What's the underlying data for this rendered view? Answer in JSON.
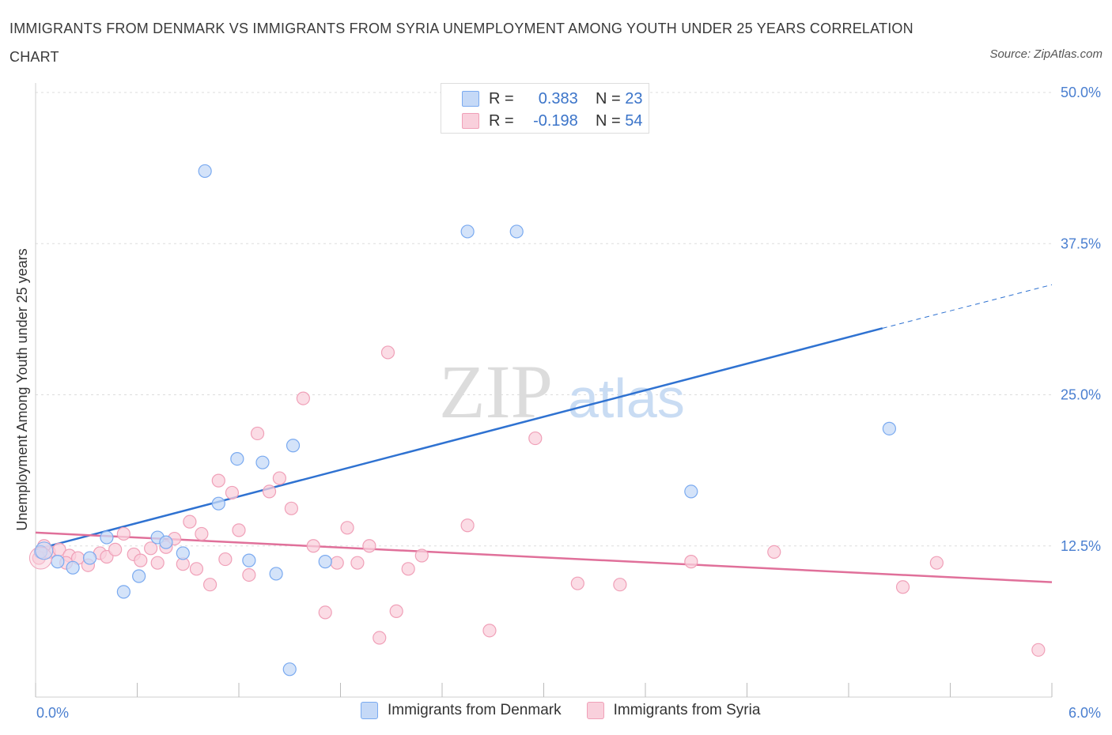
{
  "title": "IMMIGRANTS FROM DENMARK VS IMMIGRANTS FROM SYRIA UNEMPLOYMENT AMONG YOUTH UNDER 25 YEARS CORRELATION CHART",
  "source": "Source: ZipAtlas.com",
  "watermark": {
    "zip": "ZIP",
    "atlas": "atlas"
  },
  "legend": {
    "r_label": "R =",
    "n_label": "N =",
    "rows": [
      {
        "r": "0.383",
        "n": "23"
      },
      {
        "r": "-0.198",
        "n": "54"
      }
    ]
  },
  "chart_data": {
    "type": "scatter",
    "xlabel": "",
    "ylabel": "Unemployment Among Youth under 25 years",
    "xlim": [
      0,
      6
    ],
    "ylim": [
      0,
      50
    ],
    "x_tick_labels": [
      "0.0%",
      "6.0%"
    ],
    "y_tick_labels": [
      "12.5%",
      "25.0%",
      "37.5%",
      "50.0%"
    ],
    "y_ticks": [
      12.5,
      25,
      37.5,
      50
    ],
    "grid": true,
    "legend_position": "bottom",
    "series": [
      {
        "name": "Immigrants from Denmark",
        "color": "#7aaaf0",
        "fill": "#c5d9f7",
        "line_color": "#2f72d1",
        "trend": {
          "x0": 0.0,
          "y0": 12.2,
          "x1": 5.0,
          "y1": 30.5,
          "dash_to_x": 6.0,
          "dash_y1": 34.1
        },
        "points": [
          [
            0.03,
            12.0
          ],
          [
            0.13,
            11.2
          ],
          [
            0.22,
            10.7
          ],
          [
            0.32,
            11.5
          ],
          [
            0.42,
            13.2
          ],
          [
            0.52,
            8.7
          ],
          [
            0.61,
            10.0
          ],
          [
            0.72,
            13.2
          ],
          [
            0.77,
            12.8
          ],
          [
            0.87,
            11.9
          ],
          [
            1.0,
            43.5
          ],
          [
            1.08,
            16.0
          ],
          [
            1.19,
            19.7
          ],
          [
            1.34,
            19.4
          ],
          [
            1.26,
            11.3
          ],
          [
            1.42,
            10.2
          ],
          [
            1.52,
            20.8
          ],
          [
            1.71,
            11.2
          ],
          [
            2.55,
            38.5
          ],
          [
            2.84,
            38.5
          ],
          [
            3.87,
            17.0
          ],
          [
            5.04,
            22.2
          ],
          [
            1.5,
            2.3
          ]
        ]
      },
      {
        "name": "Immigrants from Syria",
        "color": "#f0a0b8",
        "fill": "#f9d0dc",
        "line_color": "#e0709a",
        "trend": {
          "x0": 0.0,
          "y0": 13.6,
          "x1": 6.0,
          "y1": 9.5
        },
        "points": [
          [
            0.02,
            11.5
          ],
          [
            0.08,
            12.0
          ],
          [
            0.14,
            12.2
          ],
          [
            0.2,
            11.7
          ],
          [
            0.25,
            11.5
          ],
          [
            0.31,
            10.9
          ],
          [
            0.38,
            11.9
          ],
          [
            0.42,
            11.6
          ],
          [
            0.47,
            12.2
          ],
          [
            0.52,
            13.5
          ],
          [
            0.58,
            11.8
          ],
          [
            0.62,
            11.3
          ],
          [
            0.68,
            12.3
          ],
          [
            0.72,
            11.1
          ],
          [
            0.77,
            12.4
          ],
          [
            0.82,
            13.1
          ],
          [
            0.87,
            11.0
          ],
          [
            0.91,
            14.5
          ],
          [
            0.95,
            10.6
          ],
          [
            0.98,
            13.5
          ],
          [
            1.03,
            9.3
          ],
          [
            1.08,
            17.9
          ],
          [
            1.12,
            11.4
          ],
          [
            1.16,
            16.9
          ],
          [
            1.2,
            13.8
          ],
          [
            1.26,
            10.1
          ],
          [
            1.31,
            21.8
          ],
          [
            1.38,
            17.0
          ],
          [
            1.44,
            18.1
          ],
          [
            1.51,
            15.6
          ],
          [
            1.58,
            24.7
          ],
          [
            1.64,
            12.5
          ],
          [
            1.71,
            7.0
          ],
          [
            1.78,
            11.1
          ],
          [
            1.84,
            14.0
          ],
          [
            1.9,
            11.1
          ],
          [
            1.97,
            12.5
          ],
          [
            2.03,
            4.9
          ],
          [
            2.08,
            28.5
          ],
          [
            2.13,
            7.1
          ],
          [
            2.2,
            10.6
          ],
          [
            2.28,
            11.7
          ],
          [
            2.55,
            14.2
          ],
          [
            2.68,
            5.5
          ],
          [
            2.95,
            21.4
          ],
          [
            3.2,
            9.4
          ],
          [
            3.45,
            9.3
          ],
          [
            3.87,
            11.2
          ],
          [
            4.36,
            12.0
          ],
          [
            5.12,
            9.1
          ],
          [
            5.32,
            11.1
          ],
          [
            5.92,
            3.9
          ],
          [
            0.05,
            12.5
          ],
          [
            0.18,
            11.1
          ]
        ]
      }
    ]
  }
}
